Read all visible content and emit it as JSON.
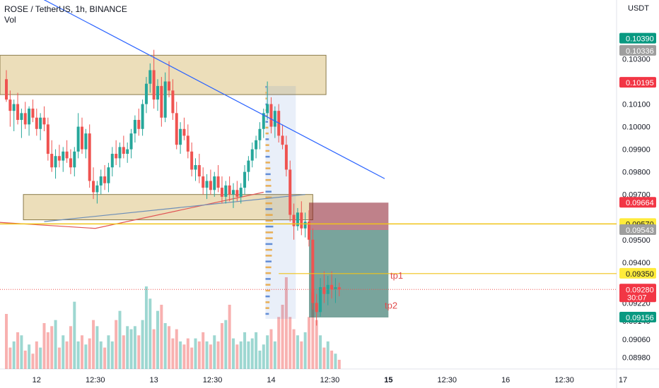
{
  "header": {
    "title": "ROSE / TetherUS, 1h, BINANCE",
    "volume_label": "Vol"
  },
  "chart_data": {
    "type": "candlestick",
    "title": "ROSE / TetherUS, 1h, BINANCE",
    "currency": "USDT",
    "ylim": [
      0.0895,
      0.1042
    ],
    "y_ticks": [
      "0.10390",
      "0.10336",
      "0.10300",
      "0.10195",
      "0.10100",
      "0.10000",
      "0.09900",
      "0.09800",
      "0.09700",
      "0.09664",
      "0.09570",
      "0.09543",
      "0.09500",
      "0.09400",
      "0.09350",
      "0.09280",
      "0.09220",
      "0.09156",
      "0.09140",
      "0.09060",
      "0.08980"
    ],
    "x_ticks": [
      "12",
      "12:30",
      "13",
      "12:30",
      "14",
      "12:30",
      "15",
      "12:30",
      "16",
      "12:30",
      "17"
    ],
    "price_badges": [
      {
        "label": "0.10390",
        "value": 0.1039,
        "bg": "#089981",
        "fg": "#ffffff"
      },
      {
        "label": "0.10336",
        "value": 0.10336,
        "bg": "#9e9e9e",
        "fg": "#ffffff"
      },
      {
        "label": "0.10195",
        "value": 0.10195,
        "bg": "#f23645",
        "fg": "#ffffff"
      },
      {
        "label": "0.09664",
        "value": 0.09664,
        "bg": "#f23645",
        "fg": "#ffffff"
      },
      {
        "label": "0.09570",
        "value": 0.0957,
        "bg": "#ffeb3b",
        "fg": "#131722"
      },
      {
        "label": "0.09543",
        "value": 0.09543,
        "bg": "#9e9e9e",
        "fg": "#ffffff"
      },
      {
        "label": "0.09350",
        "value": 0.0935,
        "bg": "#ffeb3b",
        "fg": "#131722"
      },
      {
        "label": "0.09280",
        "value": 0.0928,
        "bg": "#f23645",
        "fg": "#ffffff",
        "sub": "30:07"
      },
      {
        "label": "0.09156",
        "value": 0.09156,
        "bg": "#089981",
        "fg": "#ffffff"
      }
    ],
    "candles": [
      [
        0.1021,
        0.1025,
        0.1011,
        0.1012
      ],
      [
        0.1012,
        0.1016,
        0.1,
        0.1007
      ],
      [
        0.1007,
        0.1012,
        0.0998,
        0.101
      ],
      [
        0.101,
        0.1015,
        0.1001,
        0.1003
      ],
      [
        0.1003,
        0.1008,
        0.0995,
        0.1006
      ],
      [
        0.1006,
        0.1011,
        0.0999,
        0.1001
      ],
      [
        0.1001,
        0.1009,
        0.0996,
        0.1008
      ],
      [
        0.1008,
        0.1012,
        0.1002,
        0.1004
      ],
      [
        0.1004,
        0.1008,
        0.0996,
        0.0999
      ],
      [
        0.0999,
        0.1006,
        0.0994,
        0.1004
      ],
      [
        0.1004,
        0.1009,
        0.0998,
        0.1001
      ],
      [
        0.1001,
        0.1004,
        0.0985,
        0.0988
      ],
      [
        0.0988,
        0.0994,
        0.098,
        0.0982
      ],
      [
        0.0982,
        0.099,
        0.0977,
        0.0987
      ],
      [
        0.0987,
        0.0992,
        0.0982,
        0.0985
      ],
      [
        0.0985,
        0.0991,
        0.098,
        0.0989
      ],
      [
        0.0989,
        0.0994,
        0.0984,
        0.0986
      ],
      [
        0.0986,
        0.099,
        0.0979,
        0.0982
      ],
      [
        0.0982,
        0.0991,
        0.0978,
        0.0989
      ],
      [
        0.0989,
        0.1006,
        0.0986,
        0.1
      ],
      [
        0.1,
        0.1004,
        0.0988,
        0.099
      ],
      [
        0.099,
        0.0999,
        0.0986,
        0.0997
      ],
      [
        0.0997,
        0.1001,
        0.0973,
        0.0976
      ],
      [
        0.0976,
        0.0982,
        0.0968,
        0.0971
      ],
      [
        0.0971,
        0.0976,
        0.0966,
        0.0974
      ],
      [
        0.0974,
        0.0981,
        0.097,
        0.0978
      ],
      [
        0.0978,
        0.0983,
        0.0972,
        0.0975
      ],
      [
        0.0975,
        0.0984,
        0.0971,
        0.0982
      ],
      [
        0.0982,
        0.0991,
        0.0978,
        0.0988
      ],
      [
        0.0988,
        0.0994,
        0.0983,
        0.0986
      ],
      [
        0.0986,
        0.0993,
        0.0982,
        0.0991
      ],
      [
        0.0991,
        0.0996,
        0.0986,
        0.0988
      ],
      [
        0.0988,
        0.0993,
        0.0984,
        0.099
      ],
      [
        0.099,
        0.0999,
        0.0986,
        0.0997
      ],
      [
        0.0997,
        0.1005,
        0.0993,
        0.1003
      ],
      [
        0.1003,
        0.1008,
        0.0996,
        0.0999
      ],
      [
        0.0999,
        0.1012,
        0.0996,
        0.101
      ],
      [
        0.101,
        0.1022,
        0.1006,
        0.1019
      ],
      [
        0.1019,
        0.1028,
        0.1015,
        0.1025
      ],
      [
        0.1025,
        0.1034,
        0.1008,
        0.1012
      ],
      [
        0.1012,
        0.1021,
        0.1007,
        0.1018
      ],
      [
        0.1018,
        0.1022,
        0.1,
        0.1004
      ],
      [
        0.1004,
        0.1024,
        0.1002,
        0.102
      ],
      [
        0.102,
        0.1029,
        0.1013,
        0.1016
      ],
      [
        0.1016,
        0.1021,
        0.1003,
        0.1006
      ],
      [
        0.1006,
        0.1011,
        0.099,
        0.0992
      ],
      [
        0.0992,
        0.1002,
        0.0988,
        0.0999
      ],
      [
        0.0999,
        0.1004,
        0.0994,
        0.0996
      ],
      [
        0.0996,
        0.1001,
        0.0986,
        0.0989
      ],
      [
        0.0989,
        0.0993,
        0.0978,
        0.0981
      ],
      [
        0.0981,
        0.0986,
        0.0976,
        0.0983
      ],
      [
        0.0983,
        0.0988,
        0.0975,
        0.0978
      ],
      [
        0.0978,
        0.0982,
        0.097,
        0.0973
      ],
      [
        0.0973,
        0.0979,
        0.0968,
        0.0976
      ],
      [
        0.0976,
        0.0981,
        0.097,
        0.0972
      ],
      [
        0.0972,
        0.098,
        0.0969,
        0.0978
      ],
      [
        0.0978,
        0.0983,
        0.0971,
        0.0973
      ],
      [
        0.0973,
        0.0978,
        0.0966,
        0.0969
      ],
      [
        0.0969,
        0.0976,
        0.0966,
        0.0974
      ],
      [
        0.0974,
        0.0978,
        0.0967,
        0.097
      ],
      [
        0.097,
        0.0975,
        0.0964,
        0.0972
      ],
      [
        0.0972,
        0.0976,
        0.0967,
        0.0969
      ],
      [
        0.0969,
        0.0975,
        0.0966,
        0.0973
      ],
      [
        0.0973,
        0.0983,
        0.097,
        0.098
      ],
      [
        0.098,
        0.0987,
        0.0976,
        0.0985
      ],
      [
        0.0985,
        0.0993,
        0.0982,
        0.099
      ],
      [
        0.099,
        0.0996,
        0.0986,
        0.0994
      ],
      [
        0.0994,
        0.1002,
        0.099,
        0.0999
      ],
      [
        0.0999,
        0.1008,
        0.0995,
        0.1006
      ],
      [
        0.1006,
        0.102,
        0.1003,
        0.101
      ],
      [
        0.101,
        0.1013,
        0.0997,
        0.1
      ],
      [
        0.1,
        0.1009,
        0.0995,
        0.1007
      ],
      [
        0.1007,
        0.101,
        0.0993,
        0.0996
      ],
      [
        0.0996,
        0.1001,
        0.099,
        0.0992
      ],
      [
        0.0992,
        0.0996,
        0.0978,
        0.0981
      ],
      [
        0.0981,
        0.0985,
        0.0958,
        0.0961
      ],
      [
        0.0961,
        0.0966,
        0.095,
        0.0956
      ],
      [
        0.0956,
        0.0964,
        0.0954,
        0.0962
      ],
      [
        0.0962,
        0.0967,
        0.0952,
        0.0955
      ],
      [
        0.0955,
        0.0962,
        0.0951,
        0.0958
      ],
      [
        0.0958,
        0.0963,
        0.0947,
        0.095
      ],
      [
        0.095,
        0.0955,
        0.0919,
        0.0922
      ],
      [
        0.0922,
        0.0926,
        0.0912,
        0.0918
      ],
      [
        0.0918,
        0.0933,
        0.0916,
        0.0929
      ],
      [
        0.0929,
        0.0936,
        0.0922,
        0.0926
      ],
      [
        0.0926,
        0.0934,
        0.0921,
        0.093
      ],
      [
        0.093,
        0.0936,
        0.0924,
        0.0928
      ],
      [
        0.0928,
        0.0933,
        0.0922,
        0.0929
      ],
      [
        0.0929,
        0.0931,
        0.0925,
        0.0928
      ]
    ],
    "volume": [
      18,
      7,
      9,
      12,
      11,
      6,
      8,
      5,
      9,
      7,
      15,
      12,
      14,
      16,
      7,
      11,
      9,
      14,
      22,
      9,
      11,
      8,
      10,
      16,
      14,
      9,
      7,
      11,
      9,
      16,
      19,
      11,
      14,
      13,
      14,
      11,
      16,
      27,
      23,
      13,
      19,
      21,
      15,
      14,
      10,
      13,
      9,
      8,
      10,
      7,
      10,
      9,
      12,
      9,
      8,
      11,
      9,
      15,
      16,
      21,
      10,
      8,
      9,
      12,
      9,
      10,
      12,
      6,
      8,
      11,
      13,
      9,
      17,
      21,
      30,
      17,
      13,
      11,
      9,
      12,
      17,
      25,
      16,
      11,
      7,
      9,
      6,
      5,
      3
    ],
    "volume_max": 30,
    "annotations": {
      "resistance_zone": {
        "y_top": 0.10316,
        "y_bottom": 0.10142,
        "bar_start": 0,
        "bar_end": 84.5
      },
      "support_zone": {
        "y_top": 0.097,
        "y_bottom": 0.09588,
        "bar_start": 4.5,
        "bar_end": 81
      },
      "trendline": {
        "from": [
          9,
          0.1057
        ],
        "to": [
          100,
          0.0977
        ]
      },
      "horizontal_line": {
        "value": 0.0957,
        "bar_start": -3,
        "bar_end": 120
      },
      "tp1_line": {
        "value": 0.0935,
        "bar_start": 72,
        "bar_end": 120
      },
      "short_position": {
        "entry": 0.09543,
        "stop": 0.09664,
        "target": 0.09156,
        "bar_start": 80,
        "bar_end": 101
      },
      "volume_profile": {
        "y_top": 0.1018,
        "y_bottom": 0.0915,
        "bar_start": 68.5,
        "bar_end": 76.5
      },
      "labels": [
        {
          "text": "tp1",
          "bar": 101.5,
          "value": 0.09327
        },
        {
          "text": "tp2",
          "bar": 100,
          "value": 0.09195
        }
      ]
    },
    "colors": {
      "up": "#26a69a",
      "down": "#ef5350",
      "zone": "#c9a13a",
      "trend": "#2962ff",
      "level": "#f0c419"
    }
  }
}
